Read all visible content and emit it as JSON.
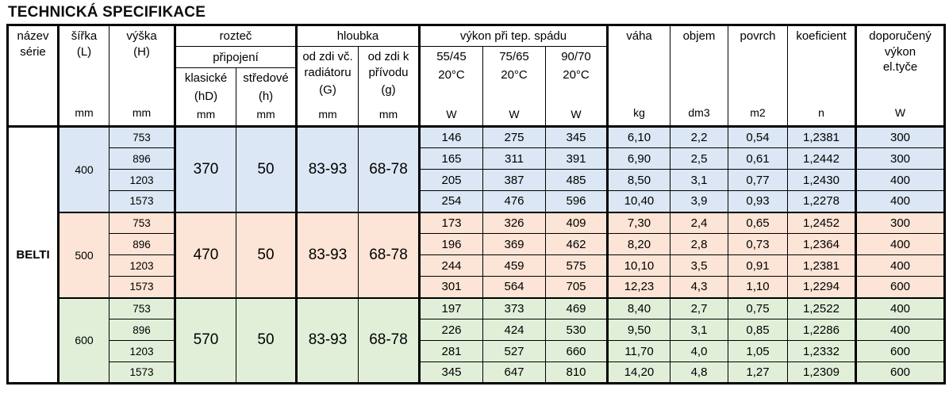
{
  "title": "TECHNICKÁ SPECIFIKACE",
  "table": {
    "series_name": "BELTI",
    "header": {
      "nazev": {
        "label": "název série"
      },
      "sirka": {
        "label": "šířka",
        "code": "(L)",
        "unit": "mm"
      },
      "vyska": {
        "label": "výška",
        "code": "(H)",
        "unit": "mm"
      },
      "roztec": {
        "label": "rozteč",
        "sublabel": "připojení",
        "cols": [
          {
            "label": "klasické",
            "code": "(hD)",
            "unit": "mm"
          },
          {
            "label": "středové",
            "code": "(h)",
            "unit": "mm"
          }
        ]
      },
      "hloubka": {
        "label": "hloubka",
        "cols": [
          {
            "line1": "od zdi vč.",
            "line2": "radiátoru",
            "code": "(G)",
            "unit": "mm"
          },
          {
            "line1": "od zdi k",
            "line2": "přívodu",
            "code": "(g)",
            "unit": "mm"
          }
        ]
      },
      "vykon": {
        "label": "výkon při tep. spádu",
        "cols": [
          {
            "line1": "55/45",
            "line2": "20°C",
            "unit": "W"
          },
          {
            "line1": "75/65",
            "line2": "20°C",
            "unit": "W"
          },
          {
            "line1": "90/70",
            "line2": "20°C",
            "unit": "W"
          }
        ]
      },
      "vaha": {
        "label": "váha",
        "unit": "kg"
      },
      "objem": {
        "label": "objem",
        "unit": "dm3"
      },
      "povrch": {
        "label": "povrch",
        "unit": "m2"
      },
      "koeficient": {
        "label": "koeficient",
        "unit": "n"
      },
      "doporuceny": {
        "line1": "doporučený",
        "line2": "výkon",
        "line3": "el.tyče",
        "unit": "W"
      }
    },
    "groups": [
      {
        "sirka": "400",
        "color": "#dbe7f4",
        "roztec_klasicke": "370",
        "roztec_stredove": "50",
        "hloubka_G": "83-93",
        "hloubka_g": "68-78",
        "rows": [
          {
            "vyska": "753",
            "p55": "146",
            "p75": "275",
            "p90": "345",
            "vaha": "6,10",
            "objem": "2,2",
            "povrch": "0,54",
            "koef": "1,2381",
            "el": "300"
          },
          {
            "vyska": "896",
            "p55": "165",
            "p75": "311",
            "p90": "391",
            "vaha": "6,90",
            "objem": "2,5",
            "povrch": "0,61",
            "koef": "1,2442",
            "el": "300"
          },
          {
            "vyska": "1203",
            "p55": "205",
            "p75": "387",
            "p90": "485",
            "vaha": "8,50",
            "objem": "3,1",
            "povrch": "0,77",
            "koef": "1,2430",
            "el": "400"
          },
          {
            "vyska": "1573",
            "p55": "254",
            "p75": "476",
            "p90": "596",
            "vaha": "10,40",
            "objem": "3,9",
            "povrch": "0,93",
            "koef": "1,2278",
            "el": "400"
          }
        ]
      },
      {
        "sirka": "500",
        "color": "#fce4d6",
        "roztec_klasicke": "470",
        "roztec_stredove": "50",
        "hloubka_G": "83-93",
        "hloubka_g": "68-78",
        "rows": [
          {
            "vyska": "753",
            "p55": "173",
            "p75": "326",
            "p90": "409",
            "vaha": "7,30",
            "objem": "2,4",
            "povrch": "0,65",
            "koef": "1,2452",
            "el": "300"
          },
          {
            "vyska": "896",
            "p55": "196",
            "p75": "369",
            "p90": "462",
            "vaha": "8,20",
            "objem": "2,8",
            "povrch": "0,73",
            "koef": "1,2364",
            "el": "400"
          },
          {
            "vyska": "1203",
            "p55": "244",
            "p75": "459",
            "p90": "575",
            "vaha": "10,10",
            "objem": "3,5",
            "povrch": "0,91",
            "koef": "1,2381",
            "el": "400"
          },
          {
            "vyska": "1573",
            "p55": "301",
            "p75": "564",
            "p90": "705",
            "vaha": "12,23",
            "objem": "4,3",
            "povrch": "1,10",
            "koef": "1,2294",
            "el": "600"
          }
        ]
      },
      {
        "sirka": "600",
        "color": "#e1efd9",
        "roztec_klasicke": "570",
        "roztec_stredove": "50",
        "hloubka_G": "83-93",
        "hloubka_g": "68-78",
        "rows": [
          {
            "vyska": "753",
            "p55": "197",
            "p75": "373",
            "p90": "469",
            "vaha": "8,40",
            "objem": "2,7",
            "povrch": "0,75",
            "koef": "1,2522",
            "el": "400"
          },
          {
            "vyska": "896",
            "p55": "226",
            "p75": "424",
            "p90": "530",
            "vaha": "9,50",
            "objem": "3,1",
            "povrch": "0,85",
            "koef": "1,2286",
            "el": "400"
          },
          {
            "vyska": "1203",
            "p55": "281",
            "p75": "527",
            "p90": "660",
            "vaha": "11,70",
            "objem": "4,0",
            "povrch": "1,05",
            "koef": "1,2332",
            "el": "600"
          },
          {
            "vyska": "1573",
            "p55": "345",
            "p75": "647",
            "p90": "810",
            "vaha": "14,20",
            "objem": "4,8",
            "povrch": "1,27",
            "koef": "1,2309",
            "el": "600"
          }
        ]
      }
    ]
  }
}
